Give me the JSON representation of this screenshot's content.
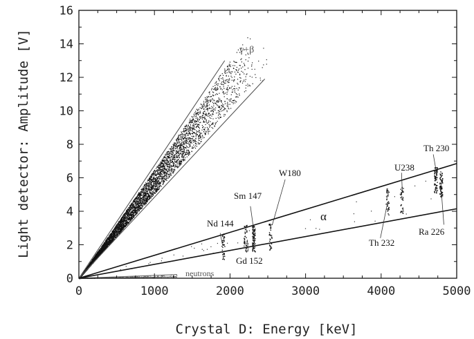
{
  "chart_data": {
    "type": "scatter",
    "title": "",
    "xlabel": "Crystal D: Energy [keV]",
    "ylabel": "Light detector: Amplitude [V]",
    "xlim": [
      0,
      5000
    ],
    "ylim": [
      0,
      16
    ],
    "xticks": [
      0,
      1000,
      2000,
      3000,
      4000,
      5000
    ],
    "yticks": [
      0,
      2,
      4,
      6,
      8,
      10,
      12,
      14,
      16
    ],
    "grid": false,
    "bands": [
      {
        "name": "gamma-beta",
        "label": "γ+β",
        "upper_line": [
          [
            0,
            0
          ],
          [
            1930,
            13.0
          ]
        ],
        "lower_line": [
          [
            0,
            0
          ],
          [
            2460,
            11.9
          ]
        ],
        "color": "#555555"
      },
      {
        "name": "alpha",
        "label": "α",
        "upper_line": [
          [
            0,
            0
          ],
          [
            5000,
            6.85
          ]
        ],
        "lower_line": [
          [
            0,
            0
          ],
          [
            5000,
            4.15
          ]
        ],
        "color": "#111111"
      },
      {
        "name": "neutrons",
        "label": "neutrons",
        "upper_line": [
          [
            0,
            0
          ],
          [
            1300,
            0.22
          ]
        ],
        "lower_line": [
          [
            0,
            0
          ],
          [
            1300,
            0.08
          ]
        ],
        "color": "#666666"
      }
    ],
    "peaks": [
      {
        "label": "Nd 144",
        "x": 1905,
        "y": 1.9,
        "label_pos": [
          1700,
          3.2
        ]
      },
      {
        "label": "Sm 147",
        "x": 2310,
        "y": 2.4,
        "label_pos": [
          2000,
          4.9
        ]
      },
      {
        "label": "Gd 152",
        "x": 2200,
        "y": 2.4,
        "label_pos": [
          2050,
          1.1
        ]
      },
      {
        "label": "W180",
        "x": 2530,
        "y": 2.5,
        "label_pos": [
          2660,
          6.2
        ]
      },
      {
        "label": "Th 232",
        "x": 4080,
        "y": 4.6,
        "label_pos": [
          3800,
          2.0
        ]
      },
      {
        "label": "U238",
        "x": 4270,
        "y": 4.7,
        "label_pos": [
          4140,
          6.5
        ]
      },
      {
        "label": "Ra 226",
        "x": 4790,
        "y": 5.6,
        "label_pos": [
          4600,
          2.6
        ]
      },
      {
        "label": "Th 230",
        "x": 4720,
        "y": 5.9,
        "label_pos": [
          4600,
          7.7
        ]
      }
    ],
    "band_labels": [
      {
        "label": "γ+β",
        "x": 2450,
        "y": 13.5
      },
      {
        "label": "α",
        "x": 3250,
        "y": 3.6
      },
      {
        "label": "neutrons",
        "x": 1400,
        "y": 0.2
      }
    ]
  },
  "labels": {
    "gamma_beta": "γ+β",
    "alpha": "α",
    "neutrons": "neutrons",
    "nd144": "Nd 144",
    "sm147": "Sm 147",
    "gd152": "Gd 152",
    "w180": "W180",
    "th232": "Th 232",
    "u238": "U238",
    "ra226": "Ra 226",
    "th230": "Th 230"
  }
}
